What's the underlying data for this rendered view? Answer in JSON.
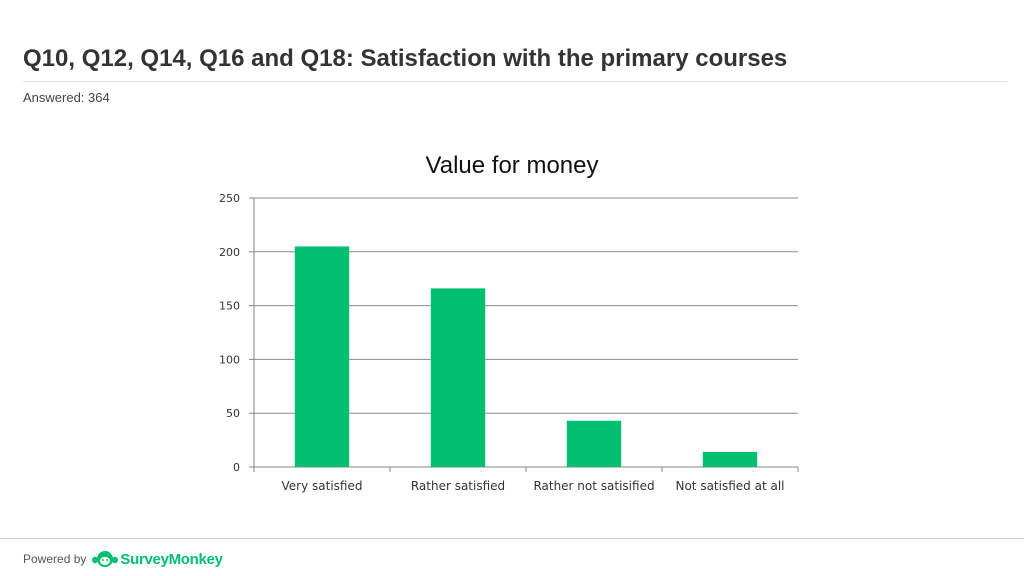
{
  "header": {
    "title": "Q10, Q12, Q14, Q16 and Q18: Satisfaction with the primary courses",
    "answered": "Answered: 364"
  },
  "chart_data": {
    "type": "bar",
    "title": "Value for money",
    "categories": [
      "Very satisfied",
      "Rather satisfied",
      "Rather not satisified",
      "Not satisfied at all"
    ],
    "values": [
      205,
      166,
      43,
      14
    ],
    "ylim": [
      0,
      250
    ],
    "yticks": [
      0,
      50,
      100,
      150,
      200,
      250
    ],
    "grid": true,
    "bar_color": "#00bf6f",
    "legend": "none"
  },
  "footer": {
    "powered_by": "Powered by",
    "brand": "SurveyMonkey",
    "brand_color": "#00bf6f",
    "icon": "surveymonkey-logo-icon"
  }
}
